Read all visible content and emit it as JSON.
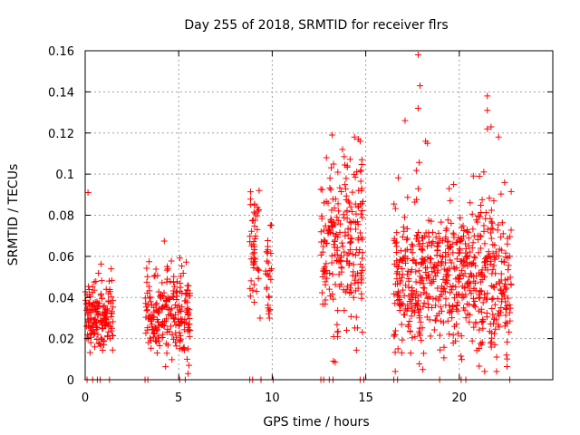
{
  "chart_data": {
    "type": "scatter",
    "title": "Day 255 of 2018, SRMTID for receiver flrs",
    "xlabel": "GPS time / hours",
    "ylabel": "SRMTID / TECUs",
    "xlim": [
      0,
      25
    ],
    "ylim": [
      0,
      0.16
    ],
    "xticks": [
      0,
      5,
      10,
      15,
      20
    ],
    "xtick_labels": [
      "0",
      "5",
      "10",
      "15",
      "20"
    ],
    "yticks": [
      0,
      0.02,
      0.04,
      0.06,
      0.08,
      0.1,
      0.12,
      0.14,
      0.16
    ],
    "ytick_labels": [
      "0",
      "0.02",
      "0.04",
      "0.06",
      "0.08",
      "0.1",
      "0.12",
      "0.14",
      "0.16"
    ],
    "grid": true,
    "marker": "+",
    "color": "#ff0000",
    "clusters": [
      {
        "x_range": [
          0.0,
          1.5
        ],
        "y_mean": 0.032,
        "y_sd": 0.008,
        "n": 160
      },
      {
        "x_range": [
          3.2,
          5.6
        ],
        "y_mean": 0.033,
        "y_sd": 0.01,
        "n": 220
      },
      {
        "x_range": [
          8.8,
          9.3
        ],
        "y_mean": 0.06,
        "y_sd": 0.016,
        "n": 45
      },
      {
        "x_range": [
          9.6,
          10.0
        ],
        "y_mean": 0.055,
        "y_sd": 0.012,
        "n": 25
      },
      {
        "x_range": [
          12.6,
          14.9
        ],
        "y_mean": 0.063,
        "y_sd": 0.02,
        "n": 230
      },
      {
        "x_range": [
          16.5,
          22.8
        ],
        "y_mean": 0.05,
        "y_sd": 0.018,
        "n": 650
      }
    ],
    "notable_points": [
      {
        "x": 0.15,
        "y": 0.091
      },
      {
        "x": 17.8,
        "y": 0.158
      },
      {
        "x": 17.9,
        "y": 0.143
      },
      {
        "x": 17.8,
        "y": 0.132
      },
      {
        "x": 21.5,
        "y": 0.138
      },
      {
        "x": 21.5,
        "y": 0.131
      },
      {
        "x": 21.5,
        "y": 0.122
      },
      {
        "x": 21.7,
        "y": 0.123
      },
      {
        "x": 17.1,
        "y": 0.126
      },
      {
        "x": 18.2,
        "y": 0.116
      },
      {
        "x": 18.3,
        "y": 0.115
      },
      {
        "x": 14.4,
        "y": 0.118
      },
      {
        "x": 14.6,
        "y": 0.117
      },
      {
        "x": 14.7,
        "y": 0.116
      },
      {
        "x": 13.2,
        "y": 0.119
      },
      {
        "x": 12.9,
        "y": 0.108
      },
      {
        "x": 22.1,
        "y": 0.118
      },
      {
        "x": 19.7,
        "y": 0.095
      },
      {
        "x": 22.0,
        "y": 0.011
      },
      {
        "x": 21.9,
        "y": 0.017
      },
      {
        "x": 5.5,
        "y": 0.003
      },
      {
        "x": 5.55,
        "y": 0.007
      },
      {
        "x": 5.45,
        "y": 0.01
      },
      {
        "x": 5.5,
        "y": 0.015
      },
      {
        "x": 5.6,
        "y": 0.024
      },
      {
        "x": 9.2,
        "y": 0.073
      },
      {
        "x": 9.25,
        "y": 0.082
      },
      {
        "x": 9.3,
        "y": 0.092
      },
      {
        "x": 9.35,
        "y": 0.03
      },
      {
        "x": 9.9,
        "y": 0.075
      },
      {
        "x": 9.85,
        "y": 0.03
      }
    ],
    "zero_points_x": [
      0.1,
      0.4,
      0.65,
      0.8,
      1.3,
      3.2,
      3.35,
      5.05,
      5.35,
      8.8,
      8.95,
      9.4,
      10.05,
      12.6,
      12.75,
      13.05,
      13.25,
      14.7,
      14.9,
      16.5,
      16.7,
      18.95,
      20.1,
      20.35,
      22.7
    ]
  }
}
